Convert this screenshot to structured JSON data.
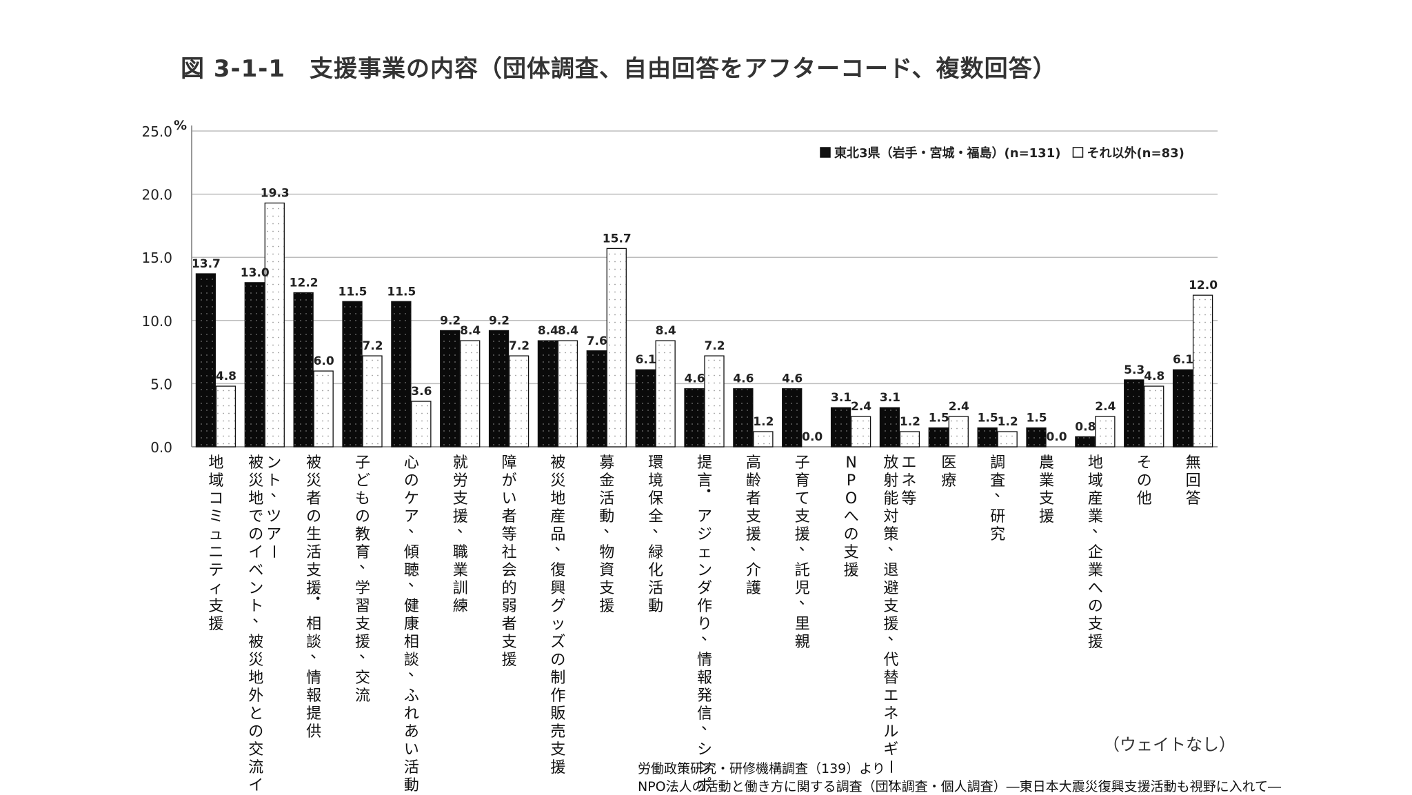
{
  "title": "図 3-1-1　支援事業の内容（団体調査、自由回答をアフターコード、複数回答）",
  "note": "（ウェイトなし）",
  "source": {
    "line1": "労働政策研究・研修機構調査（139）より",
    "line2": "NPO法人の活動と働き方に関する調査（団体調査・個人調査）―東日本大震災復興支援活動も視野に入れて―"
  },
  "chart_data": {
    "type": "bar",
    "y_unit": "%",
    "ylim": [
      0,
      25
    ],
    "yticks": [
      "0.0",
      "5.0",
      "10.0",
      "15.0",
      "20.0",
      "25.0"
    ],
    "grid": true,
    "legend_position": "top-right",
    "categories": [
      "地域コミュニティ支援",
      "被災地でのイベント、被災地外との交流イベント、ツアー",
      "被災者の生活支援・相談、情報提供",
      "子どもの教育、学習支援、交流",
      "心のケア、傾聴、健康相談、ふれあい活動",
      "就労支援、職業訓練",
      "障がい者等社会的弱者支援",
      "被災地産品、復興グッズの制作販売支援",
      "募金活動、物資支援",
      "環境保全、緑化活動",
      "提言・アジェンダ作り、情報発信、シンポ",
      "高齢者支援、介護",
      "子育て支援、託児、里親",
      "NPOへの支援",
      "放射能対策、退避支援、代替エネルギー、省エネ等",
      "医療",
      "調査、研究",
      "農業支援",
      "地域産業、企業への支援",
      "その他",
      "無回答"
    ],
    "series": [
      {
        "name": "東北3県（岩手・宮城・福島）(n=131)",
        "color": "#111111",
        "values": [
          13.7,
          13.0,
          12.2,
          11.5,
          11.5,
          9.2,
          9.2,
          8.4,
          7.6,
          6.1,
          4.6,
          4.6,
          4.6,
          3.1,
          3.1,
          1.5,
          1.5,
          1.5,
          0.8,
          5.3,
          6.1
        ],
        "labels": [
          "13.7",
          "13.0",
          "12.2",
          "11.5",
          "11.5",
          "9.2",
          "9.2",
          "8.4",
          "7.6",
          "6.1",
          "4.6",
          "4.6",
          "4.6",
          "3.1",
          "3.1",
          "1.5",
          "1.5",
          "1.5",
          "0.8",
          "5.3",
          "6.1"
        ]
      },
      {
        "name": "それ以外(n=83)",
        "color": "#ffffff",
        "values": [
          4.8,
          19.3,
          6.0,
          7.2,
          3.6,
          8.4,
          7.2,
          8.4,
          15.7,
          8.4,
          7.2,
          1.2,
          0.0,
          2.4,
          1.2,
          2.4,
          1.2,
          0.0,
          2.4,
          4.8,
          12.0
        ],
        "labels": [
          "4.8",
          "19.3",
          "6.0",
          "7.2",
          "3.6",
          "8.4",
          "7.2",
          "8.4",
          "15.7",
          "8.4",
          "7.2",
          "1.2",
          "0.0",
          "2.4",
          "1.2",
          "2.4",
          "1.2",
          "0.0",
          "2.4",
          "4.8",
          "12.0"
        ]
      }
    ]
  }
}
